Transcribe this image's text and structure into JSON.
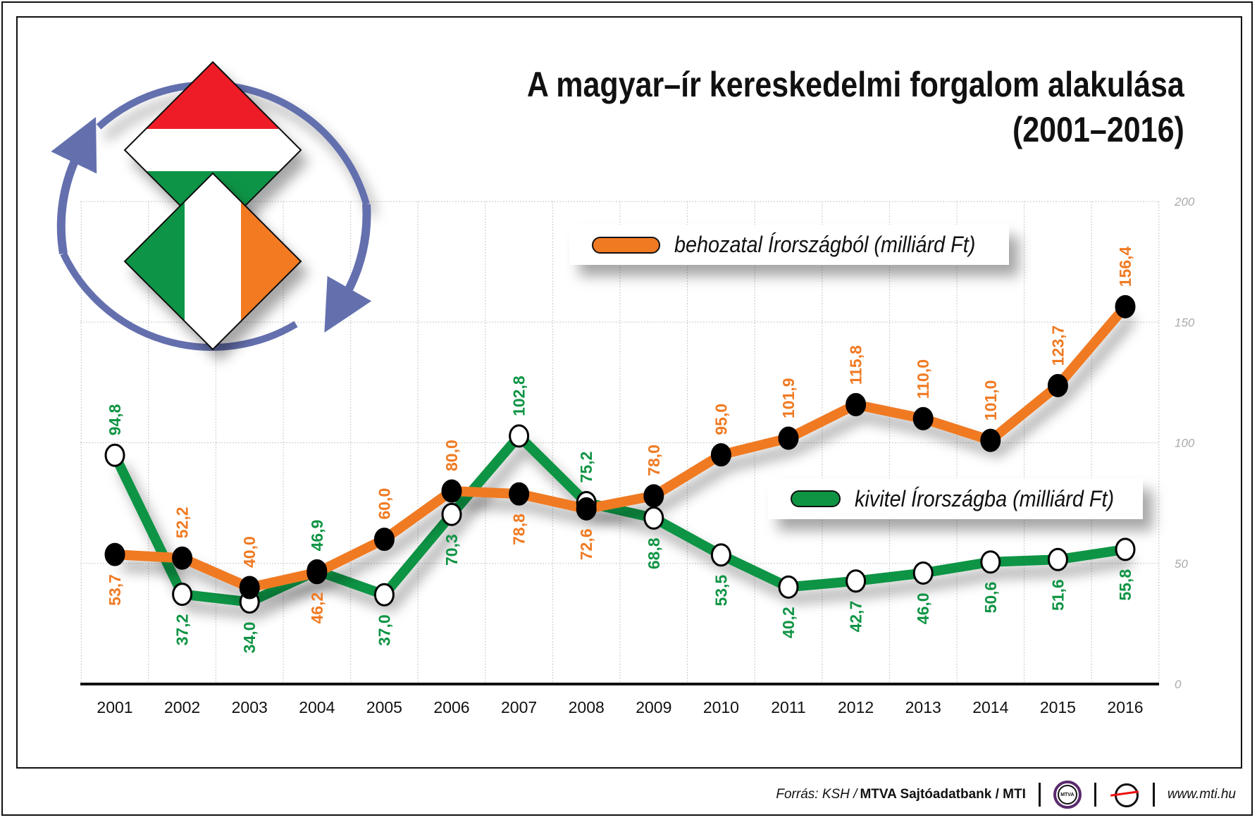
{
  "title_line1": "A magyar–ír kereskedelmi forgalom alakulása",
  "title_line2": "(2001–2016)",
  "colors": {
    "import": "#f07a22",
    "export": "#0f9444",
    "arrow": "#6470ae",
    "hu_red": "#ee1c25",
    "hu_green": "#119447",
    "ie_orange": "#f47a20"
  },
  "footer": {
    "source_prefix": "Forrás: KSH / ",
    "source_bold": "MTVA Sajtóadatbank / MTI",
    "mtva_logo": "MTVA",
    "url": "www.mti.hu"
  },
  "chart_data": {
    "type": "line",
    "title": "A magyar–ír kereskedelmi forgalom alakulása (2001–2016)",
    "x": [
      "2001",
      "2002",
      "2003",
      "2004",
      "2005",
      "2006",
      "2007",
      "2008",
      "2009",
      "2010",
      "2011",
      "2012",
      "2013",
      "2014",
      "2015",
      "2016"
    ],
    "ylim": [
      0,
      200
    ],
    "yticks": [
      "0",
      "50",
      "100",
      "150",
      "200"
    ],
    "grid": true,
    "series": [
      {
        "name": "behozatal Írországból (milliárd Ft)",
        "values": [
          53.7,
          52.2,
          40.0,
          46.2,
          60.0,
          80.0,
          78.8,
          72.6,
          78.0,
          95.0,
          101.9,
          115.8,
          110.0,
          101.0,
          123.7,
          156.4
        ],
        "labels": [
          "53,7",
          "52,2",
          "40,0",
          "46,2",
          "60,0",
          "80,0",
          "78,8",
          "72,6",
          "78,0",
          "95,0",
          "101,9",
          "115,8",
          "110,0",
          "101,0",
          "123,7",
          "156,4"
        ]
      },
      {
        "name": "kivitel Írországba (milliárd Ft)",
        "values": [
          94.8,
          37.2,
          34.0,
          46.9,
          37.0,
          70.3,
          102.8,
          75.2,
          68.8,
          53.5,
          40.2,
          42.7,
          46.0,
          50.6,
          51.6,
          55.8
        ],
        "labels": [
          "94,8",
          "37,2",
          "34,0",
          "46,9",
          "37,0",
          "70,3",
          "102,8",
          "75,2",
          "68,8",
          "53,5",
          "40,2",
          "42,7",
          "46,0",
          "50,6",
          "51,6",
          "55,8"
        ]
      }
    ]
  }
}
